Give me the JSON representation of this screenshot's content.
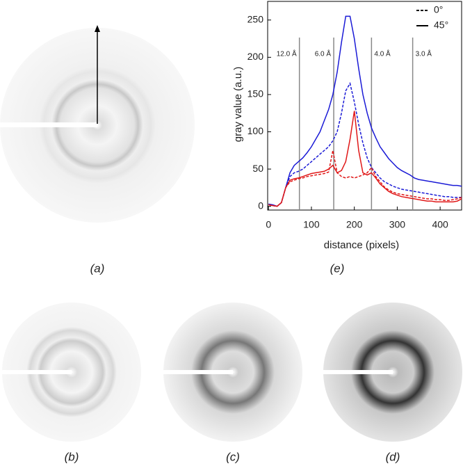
{
  "chart_data": {
    "type": "line",
    "x": [
      0,
      10,
      20,
      30,
      40,
      50,
      60,
      70,
      80,
      90,
      100,
      110,
      120,
      130,
      140,
      150,
      160,
      170,
      180,
      190,
      200,
      210,
      220,
      230,
      240,
      250,
      260,
      270,
      280,
      290,
      300,
      310,
      320,
      330,
      340,
      350,
      360,
      370,
      380,
      390,
      400,
      410,
      420,
      430,
      440,
      450
    ],
    "series": [
      {
        "color": "#1a1ad6",
        "style": "solid",
        "values": [
          3,
          2,
          0,
          5,
          25,
          45,
          55,
          60,
          65,
          72,
          80,
          90,
          100,
          115,
          130,
          150,
          180,
          220,
          255,
          255,
          225,
          185,
          150,
          125,
          105,
          92,
          80,
          72,
          64,
          58,
          52,
          48,
          45,
          42,
          38,
          36,
          35,
          34,
          33,
          32,
          31,
          30,
          29,
          28,
          28,
          27
        ]
      },
      {
        "color": "#1a1ad6",
        "style": "dashed",
        "values": [
          3,
          1,
          0,
          5,
          25,
          40,
          45,
          47,
          50,
          55,
          60,
          65,
          70,
          75,
          80,
          88,
          100,
          125,
          155,
          165,
          140,
          110,
          85,
          65,
          52,
          45,
          38,
          33,
          30,
          27,
          25,
          23,
          22,
          21,
          20,
          19,
          18,
          17,
          16,
          15,
          14,
          13,
          13,
          12,
          12,
          12
        ]
      },
      {
        "color": "#e01818",
        "style": "solid",
        "values": [
          2,
          1,
          0,
          5,
          25,
          35,
          37,
          38,
          40,
          42,
          44,
          45,
          46,
          47,
          50,
          55,
          45,
          48,
          60,
          90,
          128,
          75,
          45,
          42,
          45,
          38,
          30,
          25,
          20,
          17,
          15,
          13,
          12,
          11,
          10,
          9,
          8,
          7,
          7,
          6,
          6,
          6,
          6,
          6,
          7,
          10
        ]
      },
      {
        "color": "#e01818",
        "style": "dashed",
        "values": [
          2,
          1,
          0,
          5,
          25,
          33,
          35,
          37,
          38,
          40,
          41,
          42,
          43,
          44,
          46,
          75,
          45,
          40,
          38,
          40,
          38,
          40,
          42,
          45,
          52,
          40,
          33,
          26,
          22,
          19,
          17,
          16,
          15,
          14,
          13,
          12,
          11,
          10,
          10,
          9,
          9,
          8,
          8,
          9,
          10,
          12
        ]
      }
    ],
    "legend": [
      {
        "label": "0°",
        "style": "dashed"
      },
      {
        "label": "45°",
        "style": "solid"
      }
    ],
    "xlabel": "distance (pixels)",
    "ylabel": "gray value (a.u.)",
    "xlim": [
      -2,
      450
    ],
    "xticks": [
      0,
      100,
      200,
      300,
      400
    ],
    "ylim": [
      -5,
      275
    ],
    "yticks": [
      0,
      50,
      100,
      150,
      200,
      250
    ],
    "annotations": [
      {
        "x": 72,
        "label": "12.0 Å"
      },
      {
        "x": 152,
        "label": "6.0 Å"
      },
      {
        "x": 240,
        "label": "4.0 Å"
      },
      {
        "x": 336,
        "label": "3.0 Å"
      }
    ],
    "panel_labels": [
      "(a)",
      "(e)",
      "(b)",
      "(c)",
      "(d)"
    ]
  }
}
